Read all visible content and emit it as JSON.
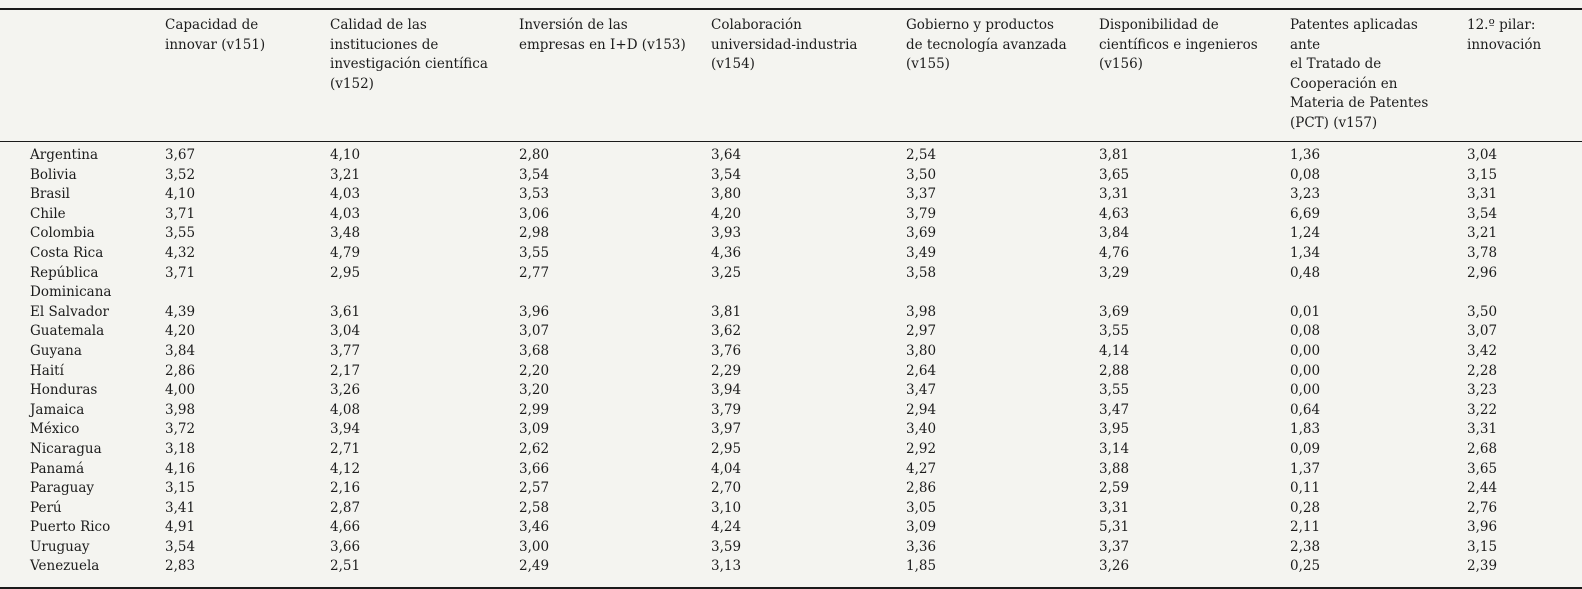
{
  "page": {
    "background_color": "#f4f4f0",
    "text_color": "#1c1c1c",
    "rule_color": "#1a1a1a"
  },
  "table": {
    "corner_label": "",
    "columns": [
      "Capacidad de\ninnovar (v151)",
      "Calidad de las\ninstituciones de\ninvestigación científica\n(v152)",
      "Inversión de las\nempresas en I+D (v153)",
      "Colaboración\nuniversidad-industria\n(v154)",
      "Gobierno y productos\nde tecnología avanzada\n(v155)",
      "Disponibilidad de\ncientíficos e ingenieros\n(v156)",
      "Patentes aplicadas ante\nel Tratado de\nCooperación en\nMateria de Patentes\n(PCT) (v157)",
      "12.º pilar:\ninnovación"
    ],
    "rows": [
      {
        "country": "Argentina",
        "values": [
          "3,67",
          "4,10",
          "2,80",
          "3,64",
          "2,54",
          "3,81",
          "1,36",
          "3,04"
        ]
      },
      {
        "country": "Bolivia",
        "values": [
          "3,52",
          "3,21",
          "3,54",
          "3,54",
          "3,50",
          "3,65",
          "0,08",
          "3,15"
        ]
      },
      {
        "country": "Brasil",
        "values": [
          "4,10",
          "4,03",
          "3,53",
          "3,80",
          "3,37",
          "3,31",
          "3,23",
          "3,31"
        ]
      },
      {
        "country": "Chile",
        "values": [
          "3,71",
          "4,03",
          "3,06",
          "4,20",
          "3,79",
          "4,63",
          "6,69",
          "3,54"
        ]
      },
      {
        "country": "Colombia",
        "values": [
          "3,55",
          "3,48",
          "2,98",
          "3,93",
          "3,69",
          "3,84",
          "1,24",
          "3,21"
        ]
      },
      {
        "country": "Costa Rica",
        "values": [
          "4,32",
          "4,79",
          "3,55",
          "4,36",
          "3,49",
          "4,76",
          "1,34",
          "3,78"
        ]
      },
      {
        "country": "República\nDominicana",
        "values": [
          "3,71",
          "2,95",
          "2,77",
          "3,25",
          "3,58",
          "3,29",
          "0,48",
          "2,96"
        ]
      },
      {
        "country": "El Salvador",
        "values": [
          "4,39",
          "3,61",
          "3,96",
          "3,81",
          "3,98",
          "3,69",
          "0,01",
          "3,50"
        ]
      },
      {
        "country": "Guatemala",
        "values": [
          "4,20",
          "3,04",
          "3,07",
          "3,62",
          "2,97",
          "3,55",
          "0,08",
          "3,07"
        ]
      },
      {
        "country": "Guyana",
        "values": [
          "3,84",
          "3,77",
          "3,68",
          "3,76",
          "3,80",
          "4,14",
          "0,00",
          "3,42"
        ]
      },
      {
        "country": "Haití",
        "values": [
          "2,86",
          "2,17",
          "2,20",
          "2,29",
          "2,64",
          "2,88",
          "0,00",
          "2,28"
        ]
      },
      {
        "country": "Honduras",
        "values": [
          "4,00",
          "3,26",
          "3,20",
          "3,94",
          "3,47",
          "3,55",
          "0,00",
          "3,23"
        ]
      },
      {
        "country": "Jamaica",
        "values": [
          "3,98",
          "4,08",
          "2,99",
          "3,79",
          "2,94",
          "3,47",
          "0,64",
          "3,22"
        ]
      },
      {
        "country": "México",
        "values": [
          "3,72",
          "3,94",
          "3,09",
          "3,97",
          "3,40",
          "3,95",
          "1,83",
          "3,31"
        ]
      },
      {
        "country": "Nicaragua",
        "values": [
          "3,18",
          "2,71",
          "2,62",
          "2,95",
          "2,92",
          "3,14",
          "0,09",
          "2,68"
        ]
      },
      {
        "country": "Panamá",
        "values": [
          "4,16",
          "4,12",
          "3,66",
          "4,04",
          "4,27",
          "3,88",
          "1,37",
          "3,65"
        ]
      },
      {
        "country": "Paraguay",
        "values": [
          "3,15",
          "2,16",
          "2,57",
          "2,70",
          "2,86",
          "2,59",
          "0,11",
          "2,44"
        ]
      },
      {
        "country": "Perú",
        "values": [
          "3,41",
          "2,87",
          "2,58",
          "3,10",
          "3,05",
          "3,31",
          "0,28",
          "2,76"
        ]
      },
      {
        "country": "Puerto Rico",
        "values": [
          "4,91",
          "4,66",
          "3,46",
          "4,24",
          "3,09",
          "5,31",
          "2,11",
          "3,96"
        ]
      },
      {
        "country": "Uruguay",
        "values": [
          "3,54",
          "3,66",
          "3,00",
          "3,59",
          "3,36",
          "3,37",
          "2,38",
          "3,15"
        ]
      },
      {
        "country": "Venezuela",
        "values": [
          "2,83",
          "2,51",
          "2,49",
          "3,13",
          "1,85",
          "3,26",
          "0,25",
          "2,39"
        ]
      }
    ]
  }
}
